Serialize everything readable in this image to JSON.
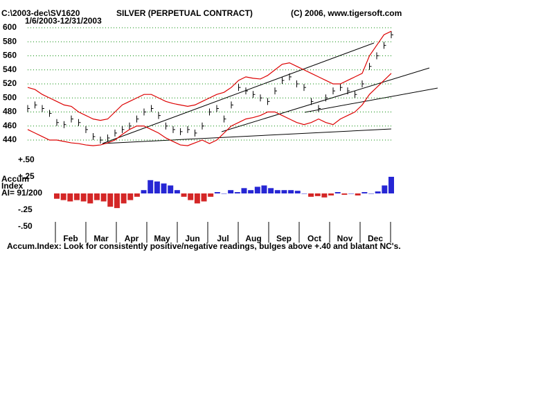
{
  "header": {
    "path": "C:\\2003-dec\\SV1620",
    "title": "SILVER (PERPETUAL CONTRACT)",
    "copyright": "(C) 2006, www.tigersoft.com",
    "date_range": "1/6/2003-12/31/2003"
  },
  "chart_data": [
    {
      "type": "price",
      "ylim": [
        440,
        600
      ],
      "yticks": [
        440,
        460,
        480,
        500,
        520,
        540,
        560,
        580,
        600
      ],
      "grid": true,
      "series": [
        {
          "name": "Close",
          "color": "#000000",
          "values": [
            485,
            490,
            485,
            478,
            465,
            462,
            470,
            465,
            455,
            445,
            440,
            443,
            450,
            455,
            460,
            470,
            480,
            485,
            475,
            460,
            455,
            452,
            455,
            450,
            460,
            480,
            485,
            470,
            490,
            515,
            510,
            505,
            500,
            495,
            510,
            525,
            530,
            520,
            515,
            495,
            485,
            500,
            510,
            515,
            510,
            505,
            520,
            545,
            560,
            575,
            590
          ]
        },
        {
          "name": "Upper Band",
          "color": "#dd0000",
          "values": [
            515,
            512,
            505,
            500,
            495,
            490,
            488,
            480,
            475,
            470,
            468,
            470,
            480,
            490,
            495,
            500,
            505,
            505,
            500,
            495,
            492,
            490,
            488,
            490,
            495,
            500,
            505,
            508,
            515,
            525,
            530,
            528,
            527,
            532,
            540,
            548,
            550,
            545,
            540,
            535,
            530,
            525,
            520,
            520,
            525,
            530,
            535,
            560,
            575,
            590,
            595
          ]
        },
        {
          "name": "Lower Band",
          "color": "#dd0000",
          "values": [
            455,
            450,
            445,
            440,
            440,
            438,
            436,
            435,
            433,
            432,
            433,
            436,
            440,
            448,
            455,
            460,
            460,
            455,
            450,
            443,
            438,
            433,
            432,
            436,
            440,
            435,
            440,
            450,
            460,
            465,
            470,
            472,
            475,
            480,
            480,
            475,
            470,
            465,
            462,
            465,
            470,
            465,
            462,
            470,
            475,
            480,
            490,
            505,
            515,
            525,
            535
          ]
        }
      ]
    },
    {
      "type": "histogram",
      "title": [
        "Accum",
        "Index"
      ],
      "ai": "AI= 91/200",
      "ylim": [
        -0.5,
        0.5
      ],
      "yticks": [
        {
          "value": 0.5,
          "label": "+.50"
        },
        {
          "value": 0.25,
          "label": "+.25"
        },
        {
          "value": -0.25,
          "label": "-.25"
        },
        {
          "value": -0.5,
          "label": "-.50"
        }
      ],
      "positive_color": "#0000cc",
      "negative_color": "#cc0000",
      "categories": [
        "Feb",
        "Mar",
        "Apr",
        "May",
        "Jun",
        "Jul",
        "Aug",
        "Sep",
        "Oct",
        "Nov",
        "Dec"
      ],
      "values": [
        -0.08,
        -0.1,
        -0.12,
        -0.1,
        -0.12,
        -0.15,
        -0.1,
        -0.12,
        -0.2,
        -0.22,
        -0.15,
        -0.1,
        -0.05,
        0.05,
        0.2,
        0.18,
        0.15,
        0.12,
        0.05,
        -0.05,
        -0.1,
        -0.15,
        -0.12,
        -0.05,
        0.02,
        0.0,
        0.05,
        0.02,
        0.08,
        0.05,
        0.1,
        0.12,
        0.08,
        0.05,
        0.05,
        0.05,
        0.04,
        0.0,
        -0.05,
        -0.04,
        -0.06,
        -0.03,
        0.02,
        -0.02,
        0.0,
        -0.03,
        0.02,
        0.0,
        0.03,
        0.12,
        0.25
      ]
    }
  ],
  "footer": "Accum.Index: Look for consistently positive/negative readings, bulges above +.40 and blatant NC's."
}
